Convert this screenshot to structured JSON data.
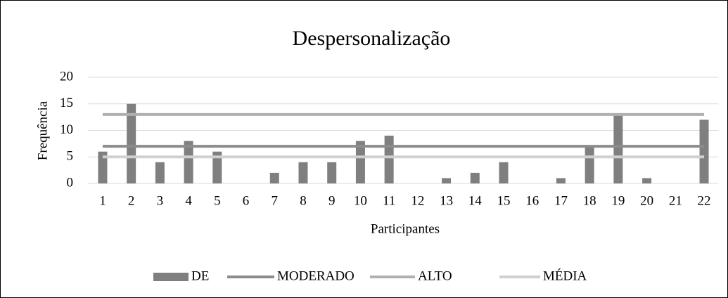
{
  "chart_data": {
    "type": "bar",
    "title": "Despersonalização",
    "xlabel": "Participantes",
    "ylabel": "Frequência",
    "categories": [
      "1",
      "2",
      "3",
      "4",
      "5",
      "6",
      "7",
      "8",
      "9",
      "10",
      "11",
      "12",
      "13",
      "14",
      "15",
      "16",
      "17",
      "18",
      "19",
      "20",
      "21",
      "22"
    ],
    "series": [
      {
        "name": "DE",
        "type": "bar",
        "color": "#7f7f7f",
        "values": [
          6,
          15,
          4,
          8,
          6,
          0,
          2,
          4,
          4,
          8,
          9,
          0,
          1,
          2,
          4,
          0,
          1,
          7,
          13,
          1,
          0,
          12
        ]
      },
      {
        "name": "MODERADO",
        "type": "line",
        "color": "#8c8c8c",
        "values": [
          7,
          7,
          7,
          7,
          7,
          7,
          7,
          7,
          7,
          7,
          7,
          7,
          7,
          7,
          7,
          7,
          7,
          7,
          7,
          7,
          7,
          7
        ]
      },
      {
        "name": "ALTO",
        "type": "line",
        "color": "#b0b0b0",
        "values": [
          13,
          13,
          13,
          13,
          13,
          13,
          13,
          13,
          13,
          13,
          13,
          13,
          13,
          13,
          13,
          13,
          13,
          13,
          13,
          13,
          13,
          13
        ]
      },
      {
        "name": "MÉDIA",
        "type": "line",
        "color": "#d0d0d0",
        "values": [
          5,
          5,
          5,
          5,
          5,
          5,
          5,
          5,
          5,
          5,
          5,
          5,
          5,
          5,
          5,
          5,
          5,
          5,
          5,
          5,
          5,
          5
        ]
      }
    ],
    "ylim": [
      0,
      20
    ],
    "yticks": [
      0,
      5,
      10,
      15,
      20
    ],
    "grid": true,
    "legend": "bottom"
  }
}
